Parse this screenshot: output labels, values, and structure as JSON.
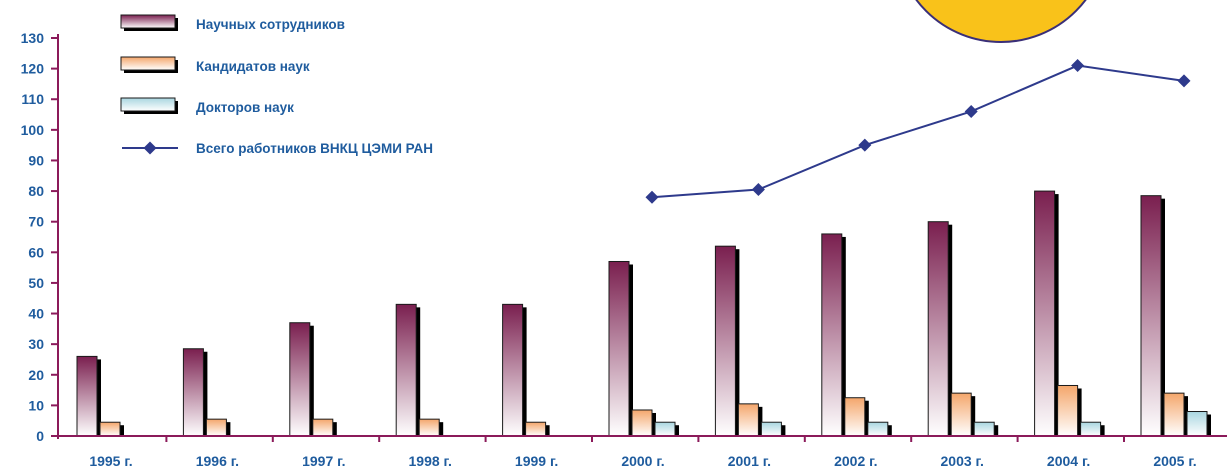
{
  "chart_data": {
    "type": "bar",
    "categories": [
      "1995 г.",
      "1996 г.",
      "1997 г.",
      "1998 г.",
      "1999 г.",
      "2000 г.",
      "2001 г.",
      "2002 г.",
      "2003 г.",
      "2004 г.",
      "2005 г."
    ],
    "ylim": [
      0,
      130
    ],
    "yticks": [
      0,
      10,
      20,
      30,
      40,
      50,
      60,
      70,
      80,
      90,
      100,
      110,
      120,
      130
    ],
    "grid": false,
    "legend_position": "top-left",
    "series": [
      {
        "name": "Научных сотрудников",
        "kind": "bar",
        "color": "#7a1f4f",
        "values": [
          26,
          28.5,
          37,
          43,
          43,
          57,
          62,
          66,
          70,
          80,
          78.5
        ]
      },
      {
        "name": "Кандидатов наук",
        "kind": "bar",
        "color": "#f4a66b",
        "values": [
          4.5,
          5.5,
          5.5,
          5.5,
          4.5,
          8.5,
          10.5,
          12.5,
          14,
          16.5,
          14
        ]
      },
      {
        "name": "Докторов наук",
        "kind": "bar",
        "color": "#a9d6e0",
        "values": [
          0,
          0,
          0,
          0,
          0,
          4.5,
          4.5,
          4.5,
          4.5,
          4.5,
          8
        ]
      },
      {
        "name": "Всего работников ВНКЦ ЦЭМИ РАН",
        "kind": "line",
        "color": "#2e3a8c",
        "values": [
          null,
          null,
          null,
          null,
          null,
          78,
          80.5,
          95,
          106,
          121,
          116
        ]
      }
    ],
    "axis_color": "#8b1a5a"
  }
}
